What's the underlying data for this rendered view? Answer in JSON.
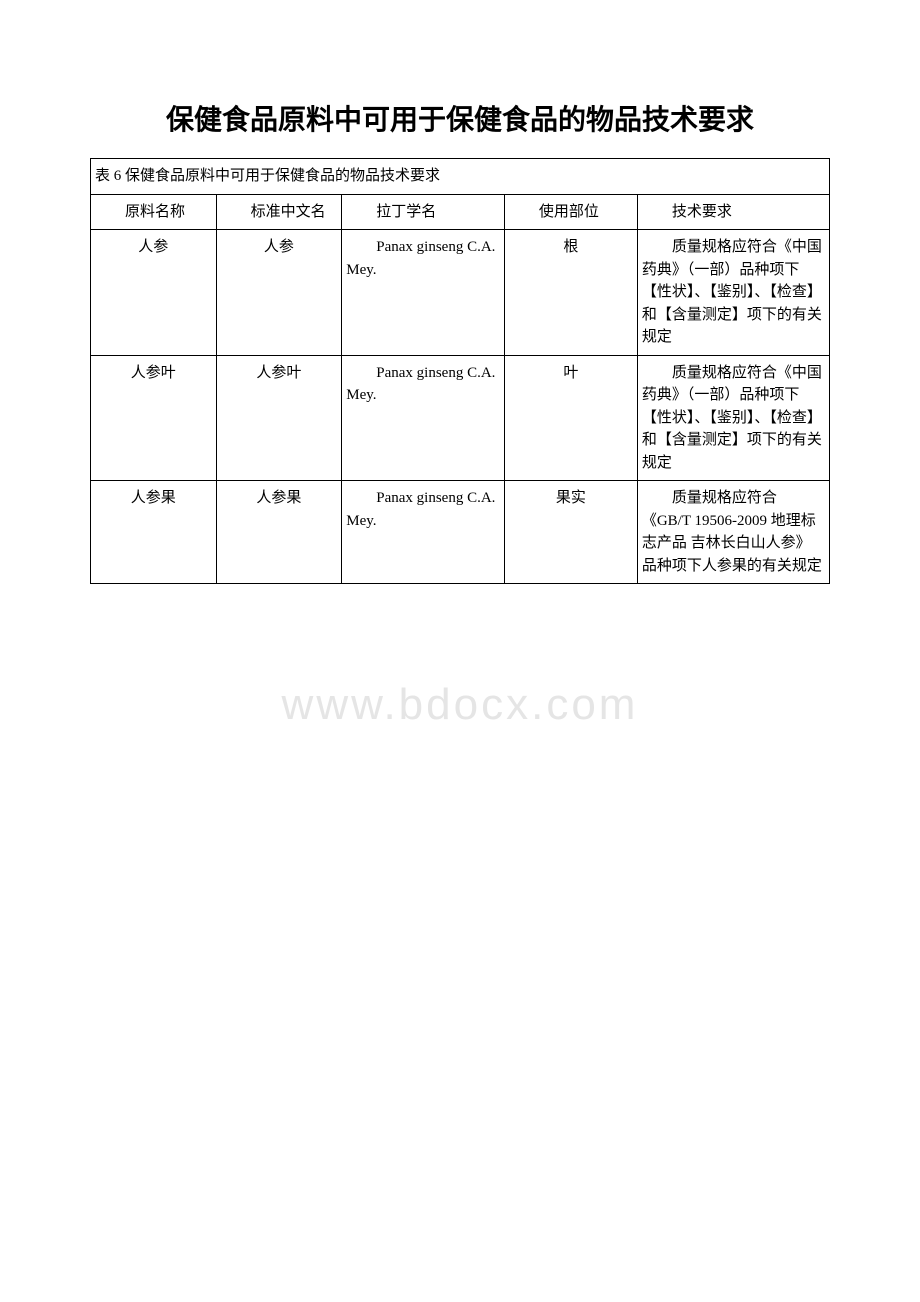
{
  "page": {
    "title": "保健食品原料中可用于保健食品的物品技术要求",
    "watermark": "www.bdocx.com"
  },
  "table": {
    "caption": "表 6 保健食品原料中可用于保健食品的物品技术要求",
    "columns": [
      {
        "label": "原料名称",
        "width": "17%",
        "align": "left"
      },
      {
        "label": "标准中文名",
        "width": "17%",
        "align": "left"
      },
      {
        "label": "拉丁学名",
        "width": "22%",
        "align": "left"
      },
      {
        "label": "使用部位",
        "width": "18%",
        "align": "left"
      },
      {
        "label": "技术要求",
        "width": "26%",
        "align": "left"
      }
    ],
    "rows": [
      {
        "material_name": "人参",
        "standard_cn_name": "人参",
        "latin_name": "Panax ginseng C.A. Mey.",
        "used_part": "根",
        "requirement": "质量规格应符合《中国药典》（一部）品种项下【性状】、【鉴别】、【检查】和【含量测定】项下的有关规定"
      },
      {
        "material_name": "人参叶",
        "standard_cn_name": "人参叶",
        "latin_name": "Panax ginseng C.A. Mey.",
        "used_part": "叶",
        "requirement": "质量规格应符合《中国药典》（一部）品种项下【性状】、【鉴别】、【检查】和【含量测定】项下的有关规定"
      },
      {
        "material_name": "人参果",
        "standard_cn_name": "人参果",
        "latin_name": "Panax ginseng C.A. Mey.",
        "used_part": "果实",
        "requirement": "质量规格应符合《GB/T 19506-2009 地理标志产品 吉林长白山人参》品种项下人参果的有关规定"
      }
    ],
    "styling": {
      "border_color": "#000000",
      "text_color": "#000000",
      "background_color": "#ffffff",
      "title_fontsize": 28,
      "body_fontsize": 15,
      "watermark_color": "#e5e5e5",
      "watermark_fontsize": 44,
      "font_family_cn": "SimSun",
      "font_family_latin": "Times New Roman"
    }
  }
}
